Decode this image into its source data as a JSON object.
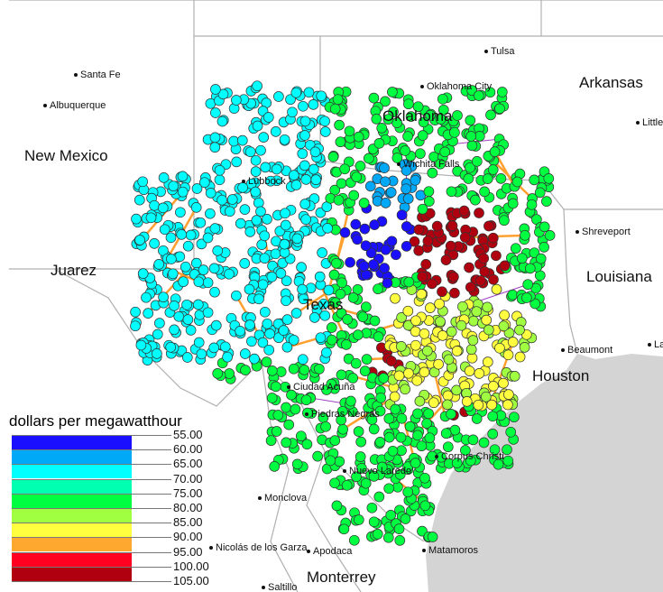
{
  "map": {
    "places": [
      {
        "name": "Santa Fe",
        "type": "city"
      },
      {
        "name": "Albuquerque",
        "type": "city"
      },
      {
        "name": "New Mexico",
        "type": "region"
      },
      {
        "name": "Tulsa",
        "type": "city"
      },
      {
        "name": "Oklahoma City",
        "type": "city"
      },
      {
        "name": "Oklahoma",
        "type": "region"
      },
      {
        "name": "Arkansas",
        "type": "region"
      },
      {
        "name": "Little",
        "type": "city"
      },
      {
        "name": "Shreveport",
        "type": "city"
      },
      {
        "name": "Louisiana",
        "type": "region"
      },
      {
        "name": "Beaumont",
        "type": "city"
      },
      {
        "name": "La",
        "type": "city"
      },
      {
        "name": "Juarez",
        "type": "region"
      },
      {
        "name": "Lubbock",
        "type": "city"
      },
      {
        "name": "Texas",
        "type": "region"
      },
      {
        "name": "Houston",
        "type": "region"
      },
      {
        "name": "Corpus Christi",
        "type": "city"
      },
      {
        "name": "Nuevo Laredo",
        "type": "city"
      },
      {
        "name": "Monclova",
        "type": "city"
      },
      {
        "name": "Nicolás de los Garza",
        "type": "city"
      },
      {
        "name": "Apodaca",
        "type": "city"
      },
      {
        "name": "Monterrey",
        "type": "region"
      },
      {
        "name": "Saltillo",
        "type": "city"
      },
      {
        "name": "Matamoros",
        "type": "city"
      },
      {
        "name": "Ciudad Acuña",
        "type": "city"
      },
      {
        "name": "Piedras Negras",
        "type": "city"
      },
      {
        "name": "Wichita Falls",
        "type": "city"
      }
    ],
    "colors": {
      "land": "#ffffff",
      "water": "#d4d4d4",
      "border": "#b0b0b0",
      "line_345kv": "#ffa030",
      "line_138kv": "#a040c0",
      "line_other": "#208040"
    }
  },
  "legend": {
    "title": "dollars per megawatthour",
    "bins": [
      {
        "from": "55.00",
        "to": "60.00",
        "color": "#1a10ff"
      },
      {
        "from": "60.00",
        "to": "65.00",
        "color": "#00a8f8"
      },
      {
        "from": "65.00",
        "to": "70.00",
        "color": "#00ffff"
      },
      {
        "from": "70.00",
        "to": "75.00",
        "color": "#00ffb0"
      },
      {
        "from": "75.00",
        "to": "80.00",
        "color": "#00ff40"
      },
      {
        "from": "80.00",
        "to": "85.00",
        "color": "#a0ff40"
      },
      {
        "from": "85.00",
        "to": "90.00",
        "color": "#ffff40"
      },
      {
        "from": "90.00",
        "to": "95.00",
        "color": "#ffa830"
      },
      {
        "from": "95.00",
        "to": "100.00",
        "color": "#ff0020"
      },
      {
        "from": "100.00",
        "to": "105.00",
        "color": "#b00010"
      }
    ],
    "ticks": [
      "55.00",
      "60.00",
      "65.00",
      "70.00",
      "75.00",
      "80.00",
      "85.00",
      "90.00",
      "95.00",
      "100.00",
      "105.00"
    ]
  }
}
